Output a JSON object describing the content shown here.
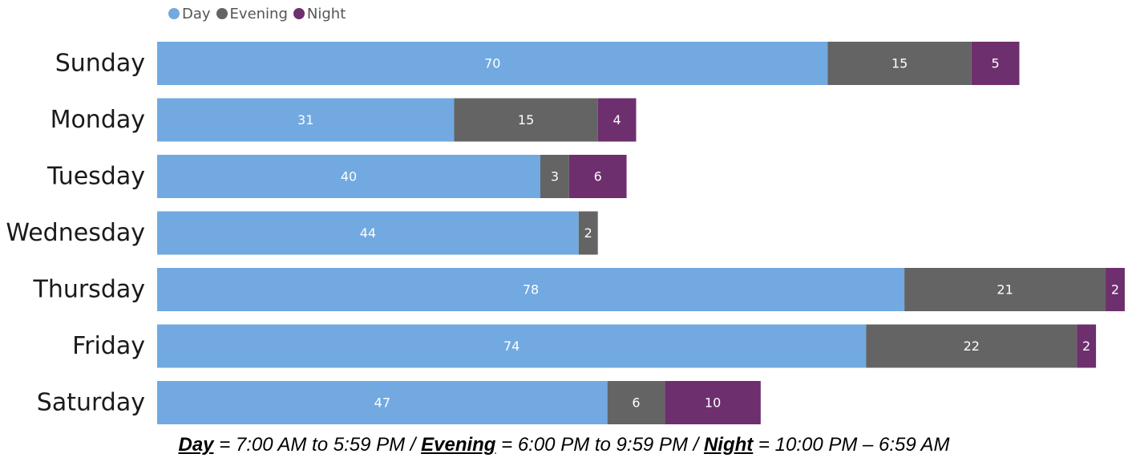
{
  "legend": [
    {
      "label": "Day",
      "color": "#71A9E0"
    },
    {
      "label": "Evening",
      "color": "#646464"
    },
    {
      "label": "Night",
      "color": "#6E2F6E"
    }
  ],
  "chart_data": {
    "type": "bar",
    "orientation": "horizontal",
    "stacked": true,
    "categories": [
      "Sunday",
      "Monday",
      "Tuesday",
      "Wednesday",
      "Thursday",
      "Friday",
      "Saturday"
    ],
    "series": [
      {
        "name": "Day",
        "color": "#71A9E0",
        "values": [
          70,
          31,
          40,
          44,
          78,
          74,
          47
        ]
      },
      {
        "name": "Evening",
        "color": "#646464",
        "values": [
          15,
          15,
          3,
          2,
          21,
          22,
          6
        ]
      },
      {
        "name": "Night",
        "color": "#6E2F6E",
        "values": [
          5,
          4,
          6,
          null,
          2,
          2,
          10
        ]
      }
    ],
    "data_labels": true,
    "legend_position": "top-left",
    "grid": false
  },
  "caption": {
    "day_term": "Day",
    "day_text": " = 7:00 AM to 5:59 PM / ",
    "evening_term": "Evening",
    "evening_text": " = 6:00 PM to 9:59 PM / ",
    "night_term": "Night",
    "night_text": " = 10:00 PM – 6:59 AM"
  }
}
